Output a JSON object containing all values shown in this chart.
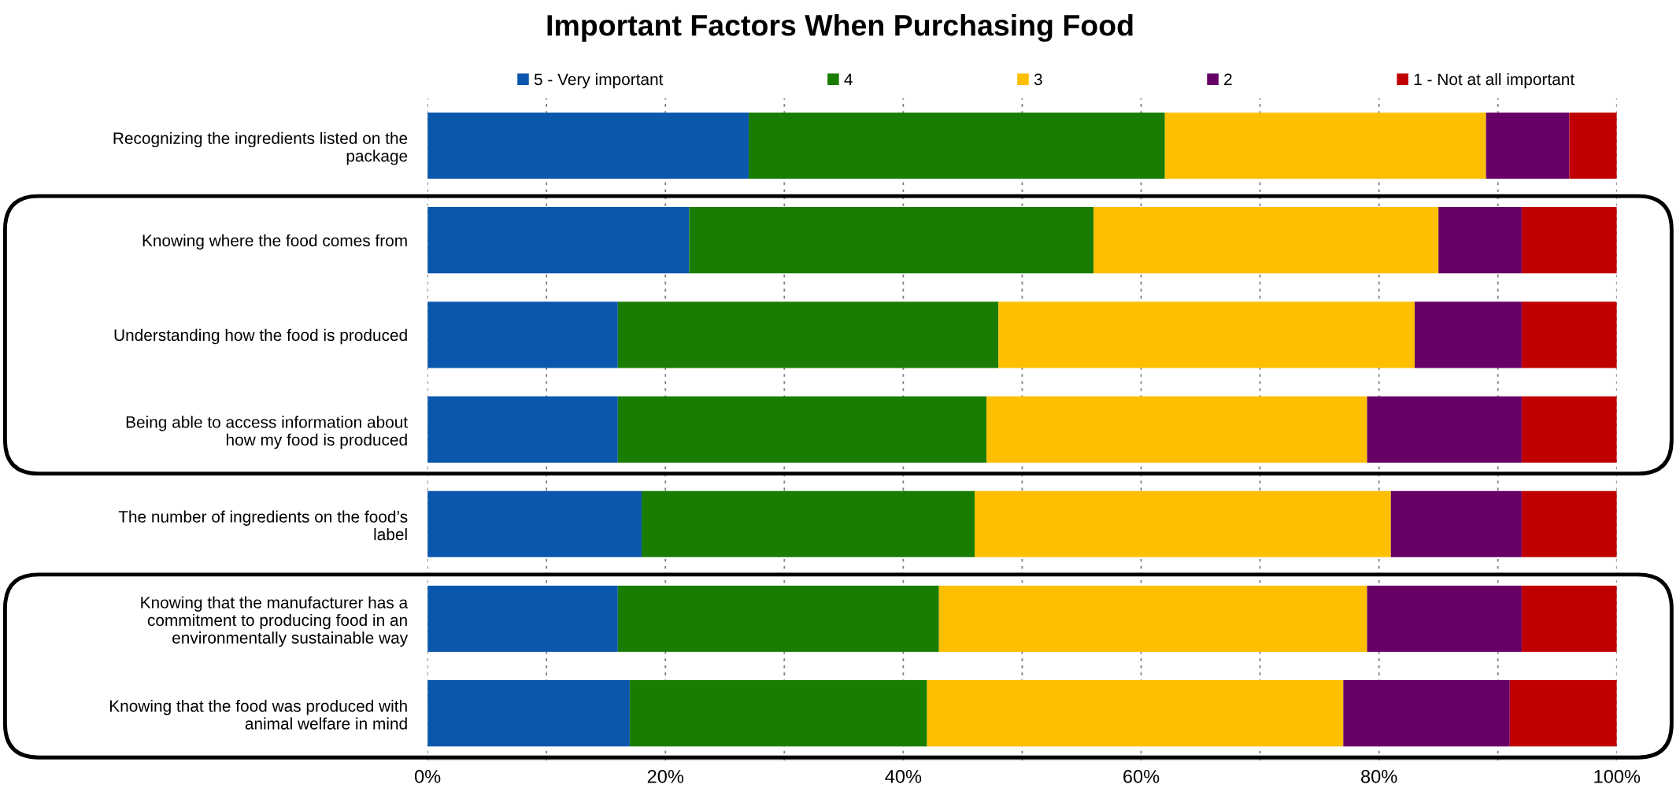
{
  "chart_data": {
    "type": "bar",
    "orientation": "horizontal",
    "stacked": true,
    "title": "Important Factors When Purchasing Food",
    "categories": [
      "Recognizing the ingredients listed on the\npackage",
      "Knowing where the food comes from",
      "Understanding how the food is produced",
      "Being able to access information about\nhow my food is produced",
      "The number of ingredients on the food’s\nlabel",
      "Knowing that the manufacturer has a\ncommitment to producing food in an\nenvironmentally sustainable way",
      "Knowing that the food was produced with\nanimal welfare in mind"
    ],
    "series": [
      {
        "name": "5 - Very important",
        "color": "#0b57ad",
        "values": [
          27,
          22,
          16,
          16,
          18,
          16,
          17
        ]
      },
      {
        "name": "4",
        "color": "#1a7d03",
        "values": [
          35,
          34,
          32,
          31,
          28,
          27,
          25
        ]
      },
      {
        "name": "3",
        "color": "#fdbf00",
        "values": [
          27,
          29,
          35,
          32,
          35,
          36,
          35
        ]
      },
      {
        "name": "2",
        "color": "#660066",
        "values": [
          7,
          7,
          9,
          13,
          11,
          13,
          14
        ]
      },
      {
        "name": "1 - Not at all important",
        "color": "#c00000",
        "values": [
          4,
          8,
          8,
          8,
          8,
          8,
          9
        ]
      }
    ],
    "xlim": [
      0,
      100
    ],
    "xticks": [
      {
        "value": 0,
        "label": "0%"
      },
      {
        "value": 10,
        "label": null
      },
      {
        "value": 20,
        "label": "20%"
      },
      {
        "value": 30,
        "label": null
      },
      {
        "value": 40,
        "label": "40%"
      },
      {
        "value": 50,
        "label": null
      },
      {
        "value": 60,
        "label": "60%"
      },
      {
        "value": 70,
        "label": null
      },
      {
        "value": 80,
        "label": "80%"
      },
      {
        "value": 90,
        "label": null
      },
      {
        "value": 100,
        "label": "100%"
      }
    ],
    "grid": "x",
    "legend": "top"
  }
}
